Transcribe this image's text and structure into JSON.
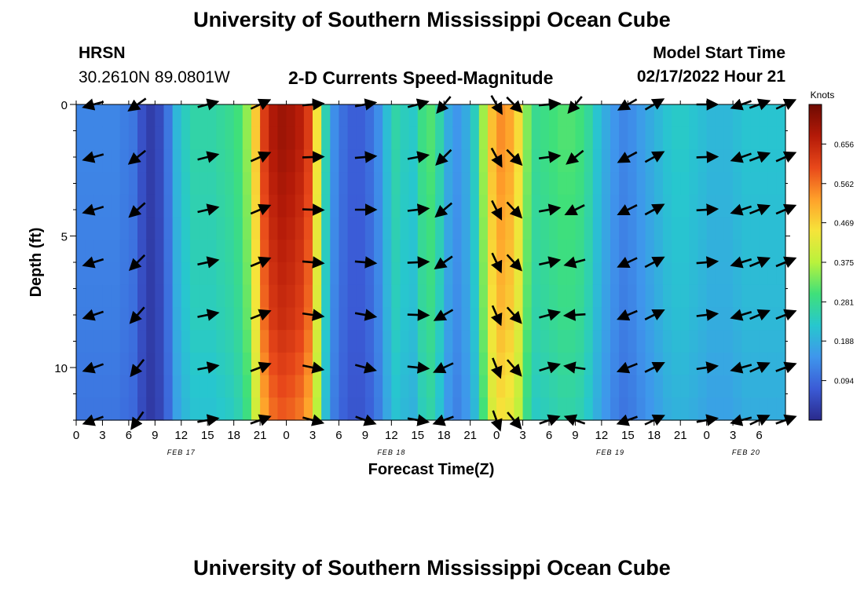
{
  "page": {
    "title": "University of Southern Mississippi Ocean Cube",
    "station": "HRSN",
    "coordinates": "30.2610N  89.0801W",
    "chart_title": "2-D Currents Speed-Magnitude",
    "model_label": "Model Start Time",
    "model_time": "02/17/2022 Hour 21",
    "bottom_title": "University of Southern Mississippi Ocean Cube",
    "colorbar_unit": "Knots"
  },
  "chart_data": {
    "type": "heatmap",
    "title": "2-D Currents Speed-Magnitude",
    "xlabel": "Forecast Time(Z)",
    "ylabel": "Depth (ft)",
    "ylim": [
      0,
      12
    ],
    "xlim_hours": [
      0,
      81
    ],
    "x_tick_labels": [
      "0",
      "3",
      "6",
      "9",
      "12",
      "15",
      "18",
      "21",
      "0",
      "3",
      "6",
      "9",
      "12",
      "15",
      "18",
      "21",
      "0",
      "3",
      "6",
      "9",
      "12",
      "15",
      "18",
      "21",
      "0",
      "3",
      "6"
    ],
    "y_ticks": [
      0,
      5,
      10
    ],
    "y_tick_labels": [
      "0",
      "5",
      "10"
    ],
    "date_labels": [
      {
        "text": "FEB 17",
        "hour": 12
      },
      {
        "text": "FEB 18",
        "hour": 36
      },
      {
        "text": "FEB 19",
        "hour": 61
      },
      {
        "text": "FEB 20",
        "hour": 76.5
      }
    ],
    "colorbar": {
      "ticks": [
        0.094,
        0.188,
        0.281,
        0.375,
        0.469,
        0.562,
        0.656
      ],
      "tick_labels": [
        "0.094",
        "0.188",
        "0.281",
        "0.375",
        "0.469",
        "0.562",
        "0.656"
      ],
      "range": [
        0,
        0.75
      ],
      "colors": [
        "#2a2a8c",
        "#3b5bd6",
        "#3f96ec",
        "#27c7ce",
        "#3fe07a",
        "#b9f23c",
        "#f6e43a",
        "#ffa02a",
        "#e8481a",
        "#b41a08",
        "#6e0a02"
      ]
    },
    "speed_profile_knots": [
      0.13,
      0.13,
      0.13,
      0.13,
      0.13,
      0.12,
      0.11,
      0.06,
      0.03,
      0.05,
      0.11,
      0.2,
      0.24,
      0.26,
      0.26,
      0.26,
      0.27,
      0.28,
      0.3,
      0.35,
      0.48,
      0.62,
      0.68,
      0.7,
      0.69,
      0.67,
      0.62,
      0.45,
      0.25,
      0.14,
      0.1,
      0.08,
      0.08,
      0.1,
      0.14,
      0.21,
      0.26,
      0.24,
      0.23,
      0.29,
      0.31,
      0.26,
      0.18,
      0.15,
      0.18,
      0.24,
      0.36,
      0.49,
      0.54,
      0.52,
      0.46,
      0.34,
      0.28,
      0.29,
      0.3,
      0.31,
      0.31,
      0.3,
      0.27,
      0.22,
      0.18,
      0.15,
      0.13,
      0.14,
      0.16,
      0.18,
      0.2,
      0.22,
      0.23,
      0.23,
      0.22,
      0.21,
      0.2,
      0.2,
      0.2,
      0.21,
      0.22,
      0.22,
      0.22,
      0.22,
      0.22
    ],
    "depth_factor": [
      1.0,
      1.0,
      0.99,
      0.98,
      0.97,
      0.96,
      0.95,
      0.94,
      0.93,
      0.92,
      0.9,
      0.88,
      0.86,
      0.84
    ],
    "vector_rows_ft": [
      0,
      2,
      4,
      6,
      8,
      10,
      12
    ],
    "vector_columns": [
      {
        "hour": 2,
        "top_angle": 195,
        "deep_angle": 200
      },
      {
        "hour": 7,
        "top_angle": 215,
        "deep_angle": 235
      },
      {
        "hour": 15,
        "top_angle": 15,
        "deep_angle": 10
      },
      {
        "hour": 21,
        "top_angle": 25,
        "deep_angle": 20
      },
      {
        "hour": 27,
        "top_angle": 5,
        "deep_angle": -15
      },
      {
        "hour": 33,
        "top_angle": 10,
        "deep_angle": -20
      },
      {
        "hour": 39,
        "top_angle": 15,
        "deep_angle": -10
      },
      {
        "hour": 42,
        "top_angle": 230,
        "deep_angle": 200
      },
      {
        "hour": 48,
        "top_angle": 300,
        "deep_angle": 290
      },
      {
        "hour": 50,
        "top_angle": 315,
        "deep_angle": 310
      },
      {
        "hour": 54,
        "top_angle": 5,
        "deep_angle": 20
      },
      {
        "hour": 57,
        "top_angle": 230,
        "deep_angle": 160
      },
      {
        "hour": 63,
        "top_angle": 210,
        "deep_angle": 200
      },
      {
        "hour": 66,
        "top_angle": 30,
        "deep_angle": 25
      },
      {
        "hour": 72,
        "top_angle": 0,
        "deep_angle": 10
      },
      {
        "hour": 76,
        "top_angle": 200,
        "deep_angle": 195
      },
      {
        "hour": 78,
        "top_angle": 20,
        "deep_angle": 25
      },
      {
        "hour": 81,
        "top_angle": 25,
        "deep_angle": 20
      }
    ]
  }
}
